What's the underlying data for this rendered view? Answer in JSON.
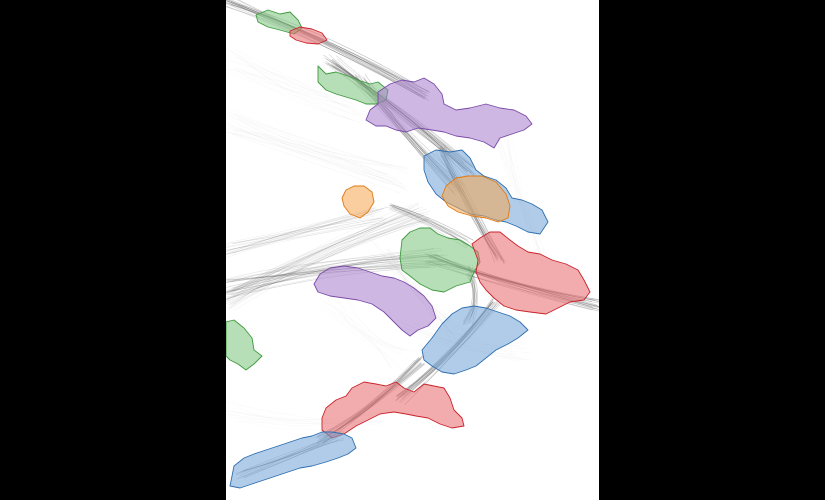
{
  "view": {
    "kind": "trajectory-cluster-overlay",
    "background": "#000000",
    "canvas_background": "#ffffff",
    "trajectory_color": "#555555"
  },
  "palette": {
    "green": {
      "fill": "#7cc47c",
      "stroke": "#3e9a3e"
    },
    "red": {
      "fill": "#e8676b",
      "stroke": "#c8232b"
    },
    "purple": {
      "fill": "#a77ccc",
      "stroke": "#7a4aa8"
    },
    "blue": {
      "fill": "#6fa3d6",
      "stroke": "#2f6fb0"
    },
    "orange": {
      "fill": "#f5a650",
      "stroke": "#e07a12"
    }
  },
  "regions": [
    {
      "id": "green-top",
      "color": "green"
    },
    {
      "id": "red-top",
      "color": "red"
    },
    {
      "id": "green-upper",
      "color": "green"
    },
    {
      "id": "purple-upper",
      "color": "purple"
    },
    {
      "id": "blue-mid",
      "color": "blue"
    },
    {
      "id": "orange-left",
      "color": "orange"
    },
    {
      "id": "orange-right",
      "color": "orange"
    },
    {
      "id": "green-center",
      "color": "green"
    },
    {
      "id": "red-right",
      "color": "red"
    },
    {
      "id": "purple-lower",
      "color": "purple"
    },
    {
      "id": "green-edge",
      "color": "green"
    },
    {
      "id": "blue-lower",
      "color": "blue"
    },
    {
      "id": "red-lower",
      "color": "red"
    },
    {
      "id": "blue-bottom",
      "color": "blue"
    }
  ]
}
